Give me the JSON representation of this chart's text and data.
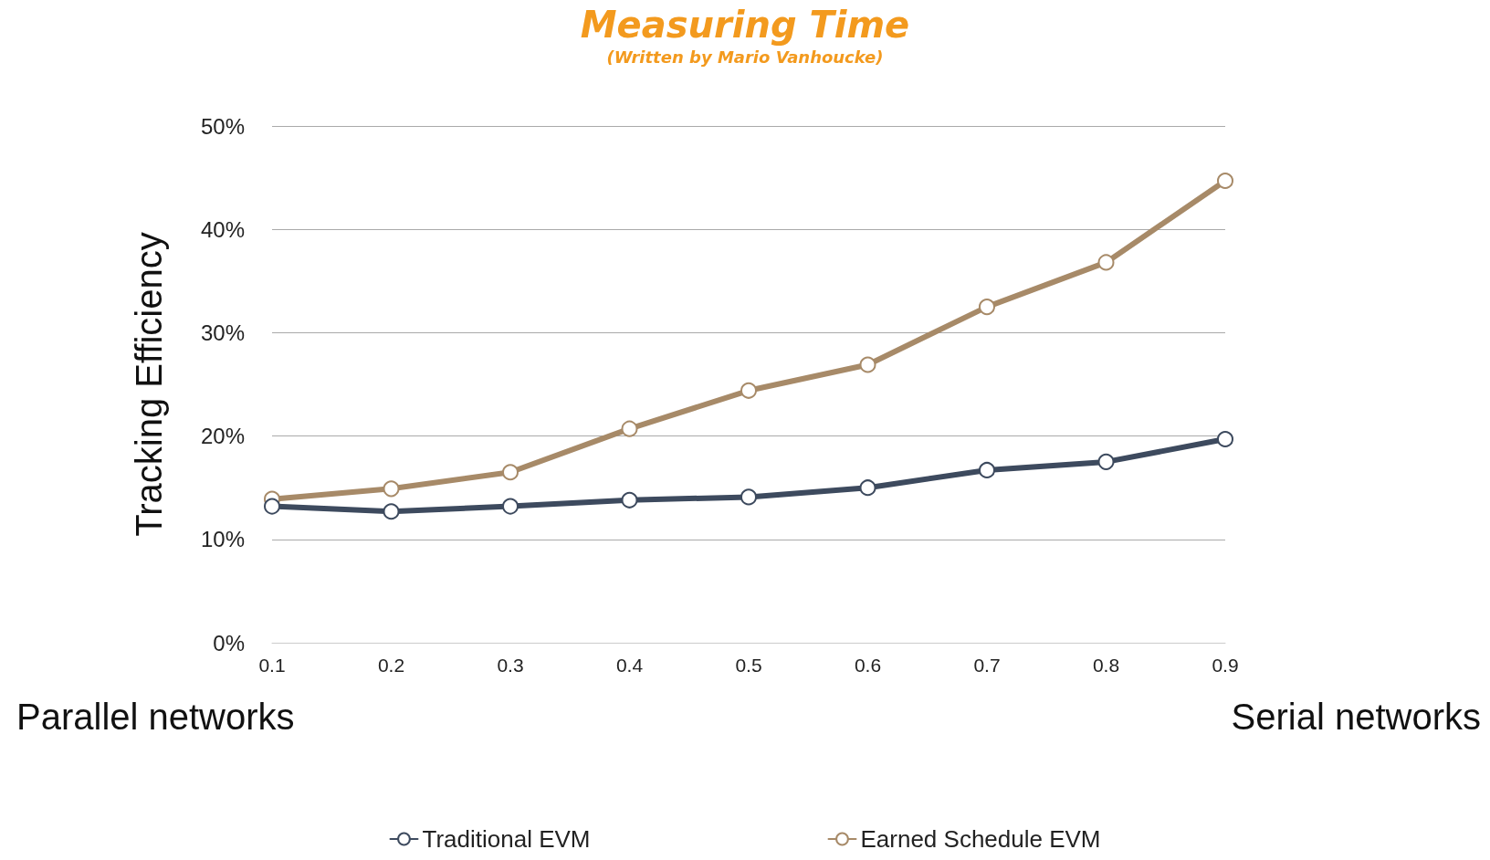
{
  "chart_data": {
    "type": "line",
    "title": "Measuring Time",
    "subtitle": "(Written by Mario Vanhoucke)",
    "ylabel": "Tracking Efficiency",
    "annotations": [
      "Parallel networks",
      "Serial networks"
    ],
    "x": [
      0.1,
      0.2,
      0.3,
      0.4,
      0.5,
      0.6,
      0.7,
      0.8,
      0.9
    ],
    "series": [
      {
        "name": "Traditional EVM",
        "color": "#3d4a5e",
        "values": [
          13.2,
          12.7,
          13.2,
          13.8,
          14.1,
          15.0,
          16.7,
          17.5,
          19.7
        ]
      },
      {
        "name": "Earned Schedule EVM",
        "color": "#a78a68",
        "values": [
          13.9,
          14.9,
          16.5,
          20.7,
          24.4,
          26.9,
          32.5,
          36.8,
          44.7
        ]
      }
    ],
    "xlim": [
      0.1,
      0.9
    ],
    "xticks": [
      0.1,
      0.2,
      0.3,
      0.4,
      0.5,
      0.6,
      0.7,
      0.8,
      0.9
    ],
    "ylim": [
      0,
      50
    ],
    "yticks": [
      {
        "value": 0,
        "label": "0%"
      },
      {
        "value": 10,
        "label": "10%"
      },
      {
        "value": 20,
        "label": "20%"
      },
      {
        "value": 30,
        "label": "30%"
      },
      {
        "value": 40,
        "label": "40%"
      },
      {
        "value": 50,
        "label": "50%"
      }
    ],
    "grid": "y",
    "legend": "bottom",
    "marker": "circle",
    "line_style": "solid"
  }
}
